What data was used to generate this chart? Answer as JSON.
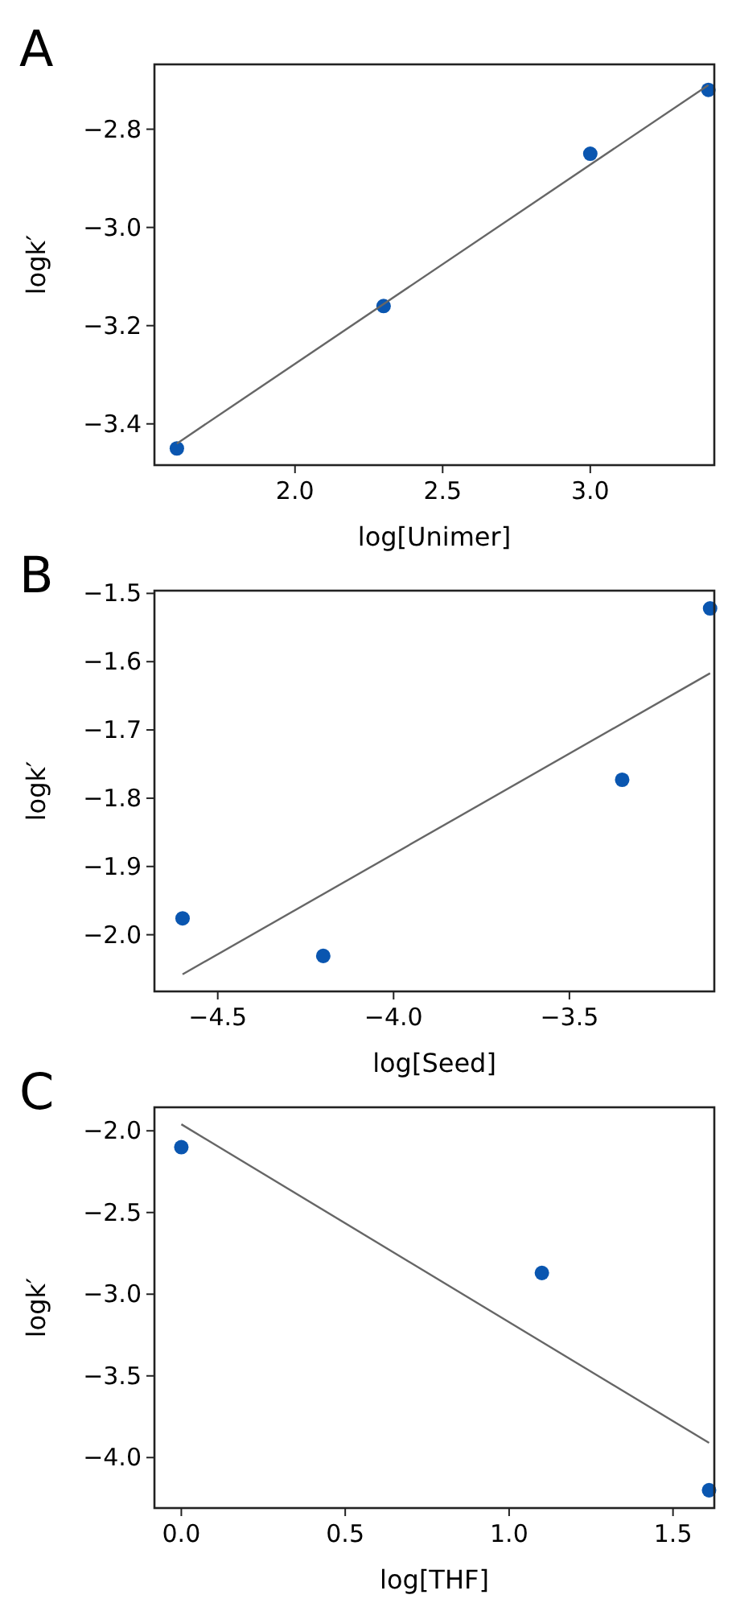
{
  "chart_data": [
    {
      "type": "scatter",
      "title": "A",
      "xlabel": "log[Unimer]",
      "ylabel": "logk′",
      "xlim": [
        1.524,
        3.42
      ],
      "ylim": [
        -3.484,
        -2.668
      ],
      "xticks": [
        {
          "value": 2.0,
          "label": "2.0"
        },
        {
          "value": 2.5,
          "label": "2.5"
        },
        {
          "value": 3.0,
          "label": "3.0"
        }
      ],
      "yticks": [
        {
          "value": -3.4,
          "label": "−3.4"
        },
        {
          "value": -3.2,
          "label": "−3.2"
        },
        {
          "value": -3.0,
          "label": "−3.0"
        },
        {
          "value": -2.8,
          "label": "−2.8"
        }
      ],
      "grid": false,
      "series": [
        {
          "color": "#0a56b0",
          "marker": "circle",
          "x": [
            1.6,
            2.3,
            3.0,
            3.4
          ],
          "values": [
            -3.45,
            -3.16,
            -2.85,
            -2.72
          ]
        },
        {
          "type": "line",
          "marker": "none",
          "color": "#666666",
          "x": [
            1.6,
            3.4
          ],
          "values": [
            -3.44,
            -2.71
          ]
        }
      ]
    },
    {
      "type": "scatter",
      "title": "B",
      "xlabel": "log[Seed]",
      "ylabel": "logk′",
      "xlim": [
        -4.68,
        -3.088
      ],
      "ylim": [
        -2.083,
        -1.496
      ],
      "xticks": [
        {
          "value": -4.5,
          "label": "−4.5"
        },
        {
          "value": -4.0,
          "label": "−4.0"
        },
        {
          "value": -3.5,
          "label": "−3.5"
        }
      ],
      "yticks": [
        {
          "value": -2.0,
          "label": "−2.0"
        },
        {
          "value": -1.9,
          "label": "−1.9"
        },
        {
          "value": -1.8,
          "label": "−1.8"
        },
        {
          "value": -1.7,
          "label": "−1.7"
        },
        {
          "value": -1.6,
          "label": "−1.6"
        },
        {
          "value": -1.5,
          "label": "−1.5"
        }
      ],
      "grid": false,
      "series": [
        {
          "color": "#0a56b0",
          "marker": "circle",
          "x": [
            -4.6,
            -4.2,
            -3.35,
            -3.1
          ],
          "values": [
            -1.976,
            -2.031,
            -1.773,
            -1.522
          ]
        },
        {
          "type": "line",
          "marker": "none",
          "color": "#666666",
          "x": [
            -4.6,
            -3.1
          ],
          "values": [
            -2.058,
            -1.617
          ]
        }
      ]
    },
    {
      "type": "scatter",
      "title": "C",
      "xlabel": "log[THF]",
      "ylabel": "logk′",
      "xlim": [
        -0.082,
        1.626
      ],
      "ylim": [
        -4.309,
        -1.856
      ],
      "xticks": [
        {
          "value": 0.0,
          "label": "0.0"
        },
        {
          "value": 0.5,
          "label": "0.5"
        },
        {
          "value": 1.0,
          "label": "1.0"
        },
        {
          "value": 1.5,
          "label": "1.5"
        }
      ],
      "yticks": [
        {
          "value": -4.0,
          "label": "−4.0"
        },
        {
          "value": -3.5,
          "label": "−3.5"
        },
        {
          "value": -3.0,
          "label": "−3.0"
        },
        {
          "value": -2.5,
          "label": "−2.5"
        },
        {
          "value": -2.0,
          "label": "−2.0"
        }
      ],
      "grid": false,
      "series": [
        {
          "color": "#0a56b0",
          "marker": "circle",
          "x": [
            0.0,
            1.1,
            1.61
          ],
          "values": [
            -2.1,
            -2.87,
            -4.2
          ]
        },
        {
          "type": "line",
          "marker": "none",
          "color": "#666666",
          "x": [
            0.0,
            1.61
          ],
          "values": [
            -1.96,
            -3.91
          ]
        }
      ]
    }
  ]
}
